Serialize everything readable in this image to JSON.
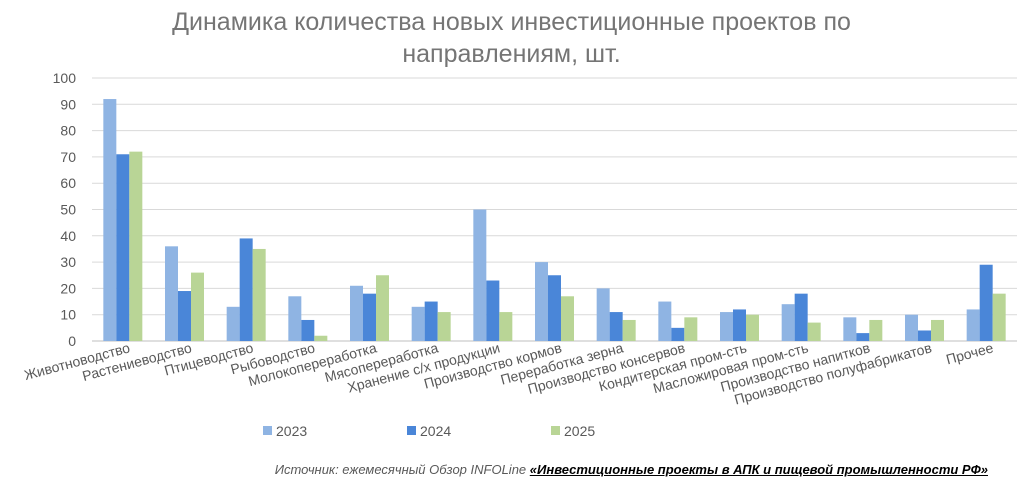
{
  "chart_data": {
    "type": "bar",
    "title_line1": "Динамика количества новых инвестиционные проектов по",
    "title_line2": "направлениям, шт.",
    "categories": [
      "Животноводство",
      "Растениеводство",
      "Птицеводство",
      "Рыбоводство",
      "Молокопереработка",
      "Мясопереработка",
      "Хранение с/х продукции",
      "Производство кормов",
      "Переработка зерна",
      "Производство консервов",
      "Кондитерская пром-сть",
      "Масложировая пром-сть",
      "Производство напитков",
      "Производство полуфабрикатов",
      "Прочее"
    ],
    "series": [
      {
        "name": "2023",
        "color": "#8FB4E3",
        "values": [
          92,
          36,
          13,
          17,
          21,
          13,
          50,
          30,
          20,
          15,
          11,
          14,
          9,
          10,
          12
        ]
      },
      {
        "name": "2024",
        "color": "#4A86D8",
        "values": [
          71,
          19,
          39,
          8,
          18,
          15,
          23,
          25,
          11,
          5,
          12,
          18,
          3,
          4,
          29
        ]
      },
      {
        "name": "2025",
        "color": "#B9D596",
        "values": [
          72,
          26,
          35,
          2,
          25,
          11,
          11,
          17,
          8,
          9,
          10,
          7,
          8,
          8,
          18
        ]
      }
    ],
    "ylim": [
      0,
      100
    ],
    "yticks": [
      "0",
      "10",
      "20",
      "30",
      "40",
      "50",
      "60",
      "70",
      "80",
      "90",
      "100"
    ],
    "grid": true,
    "legend_position": "bottom"
  },
  "source": {
    "prefix": "Источник: ежемесячный Обзор INFOLine ",
    "link": "«Инвестиционные проекты в АПК и пищевой промышленности РФ»"
  }
}
